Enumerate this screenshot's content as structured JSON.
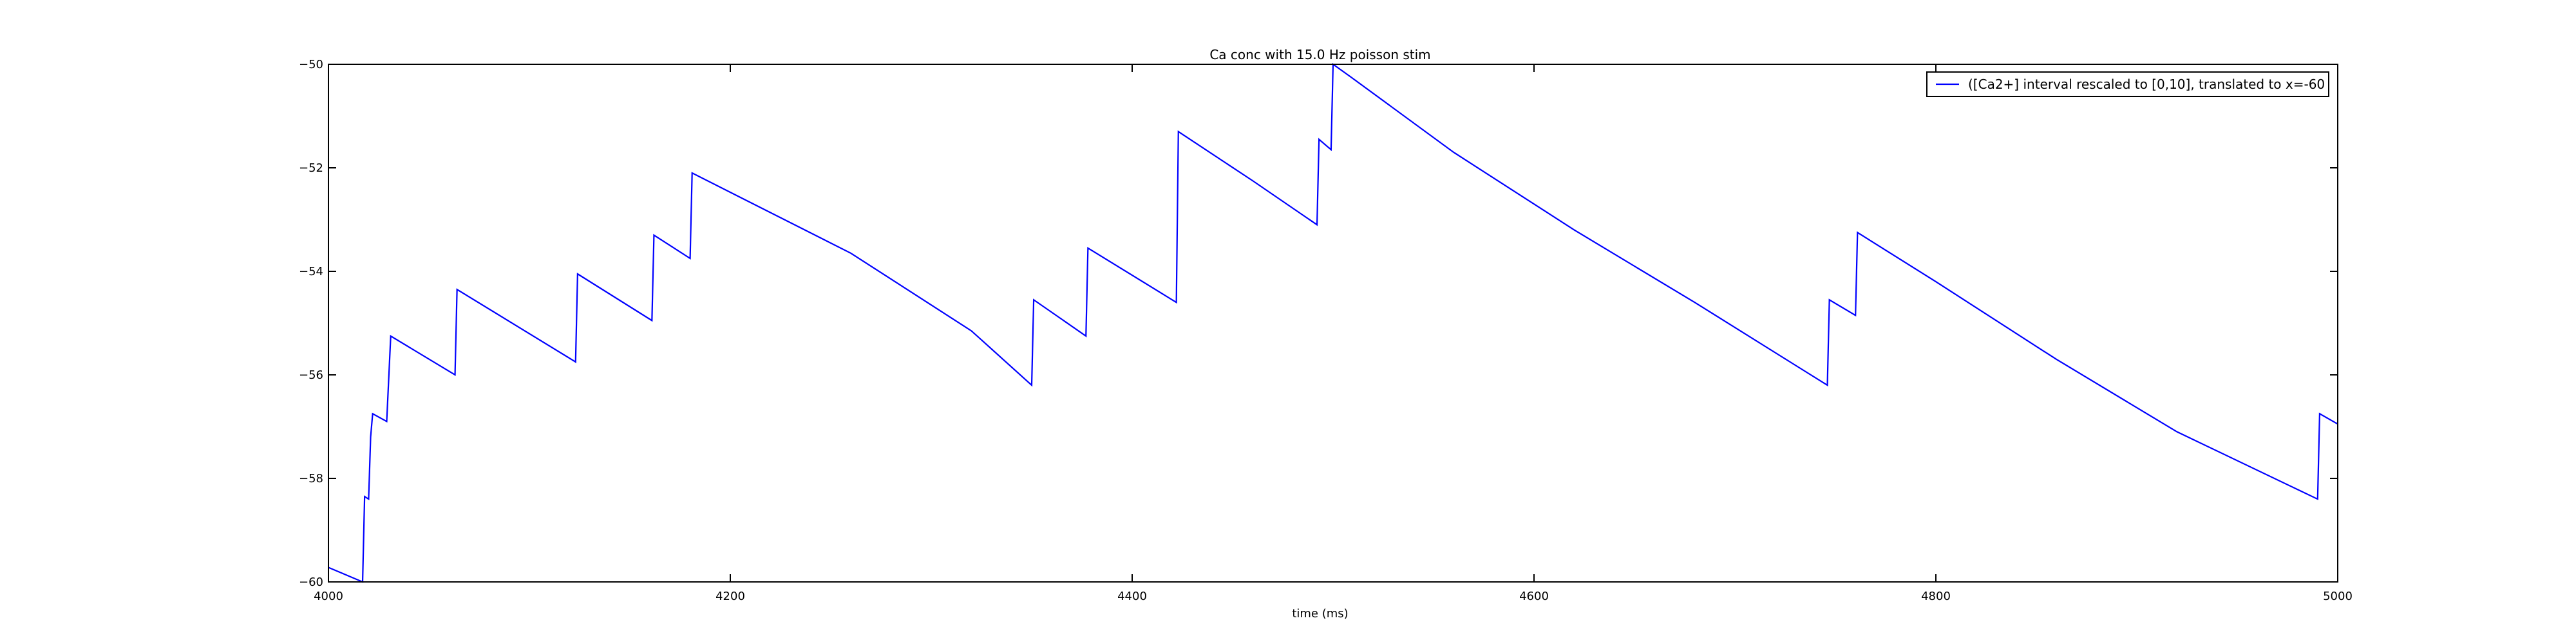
{
  "chart_data": {
    "type": "line",
    "title": "Ca conc with 15.0 Hz poisson stim",
    "xlabel": "time (ms)",
    "ylabel": "",
    "xlim": [
      4000,
      5000
    ],
    "ylim": [
      -60,
      -50
    ],
    "x_ticks": [
      4000,
      4200,
      4400,
      4600,
      4800,
      5000
    ],
    "y_ticks": [
      -60,
      -58,
      -56,
      -54,
      -52,
      -50
    ],
    "legend_position": "top-right",
    "grid": false,
    "series": [
      {
        "name": "([Ca2+] interval rescaled to [0,10], translated to x=-60",
        "color": "#0000ff",
        "x": [
          4000,
          4017,
          4018,
          4020,
          4021,
          4022,
          4029,
          4031,
          4063,
          4064,
          4123,
          4124,
          4161,
          4162,
          4180,
          4181,
          4260,
          4320,
          4350,
          4351,
          4377,
          4378,
          4422,
          4423,
          4460,
          4492,
          4493,
          4499,
          4500,
          4509,
          4560,
          4620,
          4680,
          4746,
          4747,
          4760,
          4761,
          4800,
          4860,
          4920,
          4990,
          4991,
          5000
        ],
        "y": [
          -59.72,
          -60.0,
          -58.35,
          -58.4,
          -57.2,
          -56.75,
          -56.9,
          -55.25,
          -56.0,
          -54.35,
          -55.75,
          -54.05,
          -54.95,
          -53.3,
          -53.75,
          -52.1,
          -53.65,
          -55.15,
          -56.2,
          -54.55,
          -55.25,
          -53.55,
          -54.6,
          -51.3,
          -52.25,
          -53.1,
          -51.45,
          -51.65,
          -50.0,
          -50.25,
          -51.7,
          -53.2,
          -54.6,
          -56.2,
          -54.55,
          -54.85,
          -53.25,
          -54.2,
          -55.7,
          -57.1,
          -58.4,
          -56.75,
          -56.95
        ]
      }
    ]
  }
}
